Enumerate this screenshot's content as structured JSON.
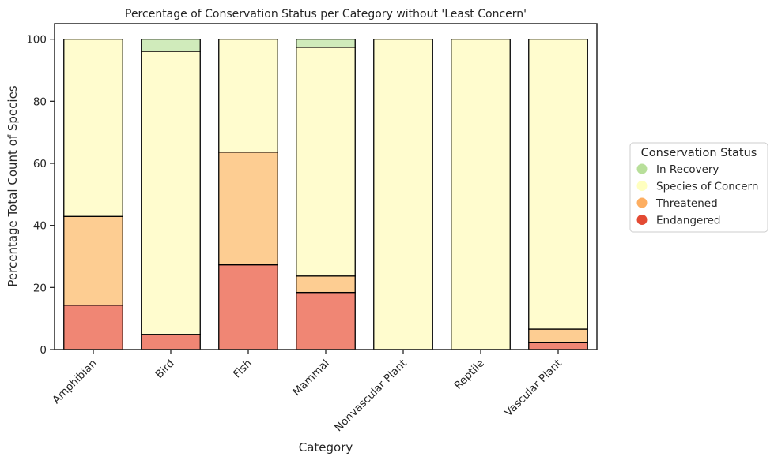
{
  "chart_data": {
    "type": "bar",
    "stacked": true,
    "title": "Percentage of Conservation Status per Category without 'Least Concern'",
    "xlabel": "Category",
    "ylabel": "Percentage Total Count of Species",
    "ylim": [
      0,
      105
    ],
    "yticks": [
      0,
      20,
      40,
      60,
      80,
      100
    ],
    "grid": false,
    "legend_title": "Conservation Status",
    "legend_position": "right",
    "categories": [
      "Amphibian",
      "Bird",
      "Fish",
      "Mammal",
      "Nonvascular Plant",
      "Reptile",
      "Vascular Plant"
    ],
    "series": [
      {
        "name": "Endangered",
        "color": "#f08674",
        "legend_color": "#e34a33",
        "values": [
          14.3,
          4.9,
          27.3,
          18.4,
          0,
          0,
          2.2
        ]
      },
      {
        "name": "Threatened",
        "color": "#fdcd92",
        "legend_color": "#fdae61",
        "values": [
          28.6,
          0,
          36.3,
          5.3,
          0,
          0,
          4.4
        ]
      },
      {
        "name": "Species of Concern",
        "color": "#fffcce",
        "legend_color": "#ffffbf",
        "values": [
          57.1,
          91.2,
          36.4,
          73.7,
          100,
          100,
          93.4
        ]
      },
      {
        "name": "In Recovery",
        "color": "#d0ebbb",
        "legend_color": "#b8df9a",
        "values": [
          0,
          3.9,
          0,
          2.6,
          0,
          0,
          0
        ]
      }
    ],
    "legend_order": [
      "In Recovery",
      "Species of Concern",
      "Threatened",
      "Endangered"
    ]
  }
}
